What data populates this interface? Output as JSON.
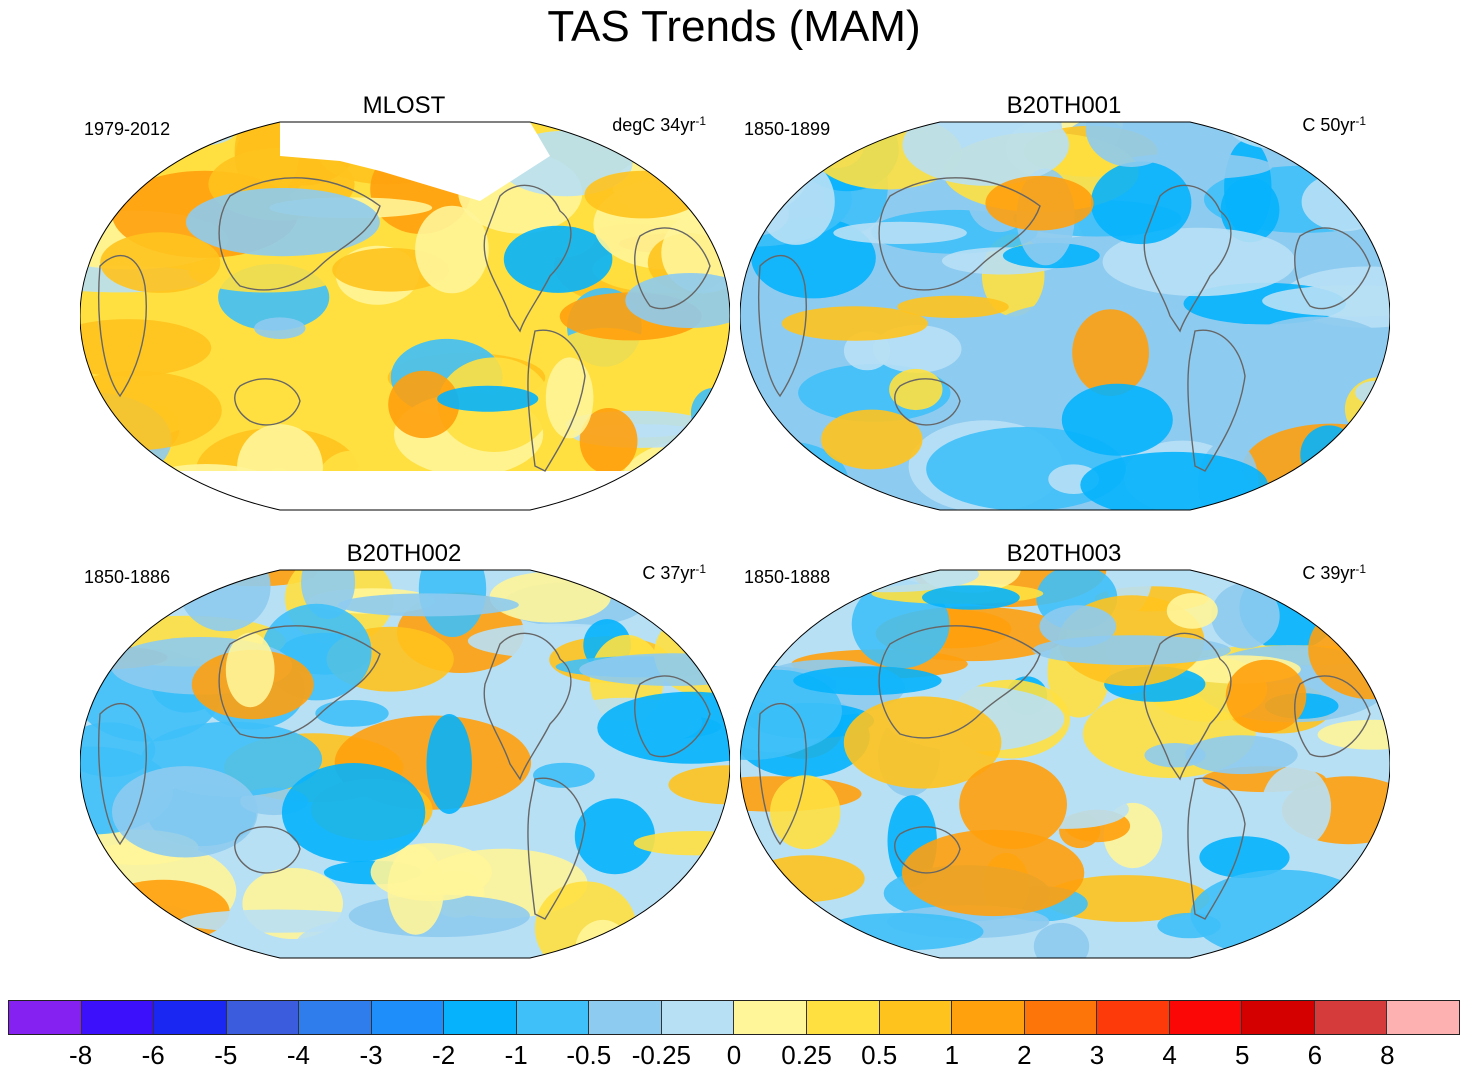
{
  "title": "TAS Trends (MAM)",
  "panels": [
    {
      "title": "MLOST",
      "period": "1979-2012",
      "units": "degC 34yr",
      "units_exp": "-1",
      "dominant": "warm"
    },
    {
      "title": "B20TH001",
      "period": "1850-1899",
      "units": "C 50yr",
      "units_exp": "-1",
      "dominant": "cool"
    },
    {
      "title": "B20TH002",
      "period": "1850-1886",
      "units": "C 37yr",
      "units_exp": "-1",
      "dominant": "mixed"
    },
    {
      "title": "B20TH003",
      "period": "1850-1888",
      "units": "C 39yr",
      "units_exp": "-1",
      "dominant": "mixed"
    }
  ],
  "colorbar": {
    "labels": [
      "-8",
      "-6",
      "-5",
      "-4",
      "-3",
      "-2",
      "-1",
      "-0.5",
      "-0.25",
      "0",
      "0.25",
      "0.5",
      "1",
      "2",
      "3",
      "4",
      "5",
      "6",
      "8"
    ],
    "colors": [
      "#8522f2",
      "#3c10fb",
      "#1a26f2",
      "#3b5ddd",
      "#2f7ced",
      "#1e8ffa",
      "#06b2fc",
      "#3fc0f8",
      "#8ecbf0",
      "#b8e0f5",
      "#fff599",
      "#ffe040",
      "#ffc31e",
      "#ffa00d",
      "#fd7408",
      "#fc3a0a",
      "#fb0705",
      "#d40000",
      "#d63b3b",
      "#fdb1b0"
    ]
  },
  "chart_data": {
    "type": "heatmap",
    "title": "TAS Trends (MAM)",
    "panels": [
      "MLOST",
      "B20TH001",
      "B20TH002",
      "B20TH003"
    ],
    "periods": [
      "1979-2012",
      "1850-1899",
      "1850-1886",
      "1850-1888"
    ],
    "units": [
      "degC 34yr-1",
      "C 50yr-1",
      "C 37yr-1",
      "C 39yr-1"
    ],
    "levels": [
      -8,
      -6,
      -5,
      -4,
      -3,
      -2,
      -1,
      -0.5,
      -0.25,
      0,
      0.25,
      0.5,
      1,
      2,
      3,
      4,
      5,
      6,
      8
    ]
  }
}
